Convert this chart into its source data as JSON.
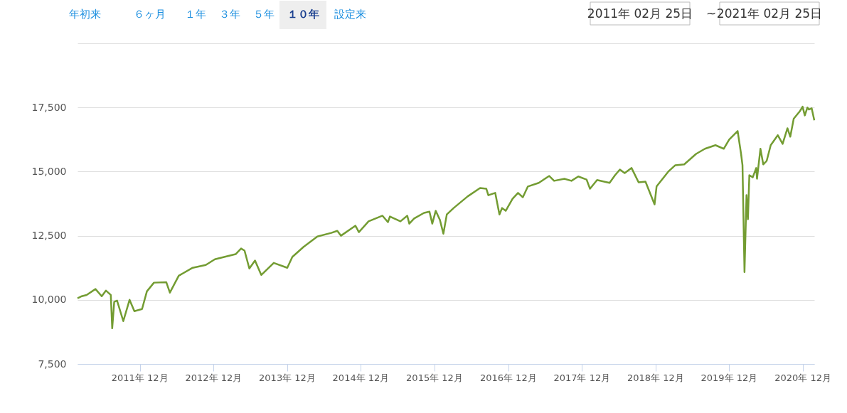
{
  "chart_data": {
    "type": "line",
    "annotations": [
      "年初来",
      "６ヶ月",
      "１年",
      "３年",
      "５年",
      "１０年",
      "設定来",
      "2011年 02月 25日",
      "~",
      "2021年 02月 25日"
    ],
    "x": [
      "2011-02-25",
      "2011-03-18",
      "2011-04-11",
      "2011-05-25",
      "2011-06-25",
      "2011-07-16",
      "2011-08-09",
      "2011-08-16",
      "2011-08-26",
      "2011-09-09",
      "2011-10-10",
      "2011-11-10",
      "2011-12-04",
      "2012-01-11",
      "2012-02-04",
      "2012-03-10",
      "2012-05-10",
      "2012-05-28",
      "2012-07-11",
      "2012-09-18",
      "2012-11-22",
      "2013-01-06",
      "2013-04-19",
      "2013-05-16",
      "2013-06-02",
      "2013-06-26",
      "2013-07-24",
      "2013-08-24",
      "2013-10-25",
      "2013-12-31",
      "2014-01-25",
      "2014-03-21",
      "2014-05-29",
      "2014-08-06",
      "2014-09-05",
      "2014-09-23",
      "2014-12-04",
      "2014-12-21",
      "2015-02-07",
      "2015-04-17",
      "2015-05-14",
      "2015-05-24",
      "2015-07-15",
      "2015-08-18",
      "2015-08-28",
      "2015-09-21",
      "2015-11-09",
      "2015-12-06",
      "2015-12-20",
      "2016-01-06",
      "2016-01-27",
      "2016-02-13",
      "2016-03-01",
      "2016-04-04",
      "2016-06-12",
      "2016-08-13",
      "2016-09-13",
      "2016-09-23",
      "2016-10-27",
      "2016-11-17",
      "2016-11-30",
      "2016-12-18",
      "2017-01-21",
      "2017-02-17",
      "2017-03-13",
      "2017-04-07",
      "2017-05-31",
      "2017-07-22",
      "2017-08-15",
      "2017-10-05",
      "2017-11-09",
      "2017-12-13",
      "2018-01-23",
      "2018-02-09",
      "2018-03-16",
      "2018-05-17",
      "2018-06-13",
      "2018-07-07",
      "2018-07-31",
      "2018-09-03",
      "2018-10-08",
      "2018-11-11",
      "2018-12-26",
      "2019-01-05",
      "2019-03-04",
      "2019-04-08",
      "2019-05-22",
      "2019-07-20",
      "2019-09-02",
      "2019-10-24",
      "2019-12-04",
      "2019-12-31",
      "2020-02-11",
      "2020-02-28",
      "2020-03-06",
      "2020-03-16",
      "2020-03-26",
      "2020-04-02",
      "2020-04-09",
      "2020-04-26",
      "2020-05-13",
      "2020-05-17",
      "2020-06-03",
      "2020-06-17",
      "2020-07-04",
      "2020-07-24",
      "2020-08-28",
      "2020-09-21",
      "2020-10-15",
      "2020-10-29",
      "2020-11-15",
      "2020-12-16",
      "2020-12-29",
      "2021-01-09",
      "2021-01-22",
      "2021-01-29",
      "2021-02-12",
      "2021-02-25"
    ],
    "series": [
      {
        "color": "#739c32",
        "values": [
          10060,
          10140,
          10190,
          10420,
          10140,
          10360,
          10190,
          8890,
          9920,
          9970,
          9170,
          10000,
          9560,
          9640,
          10330,
          10670,
          10690,
          10280,
          10940,
          11250,
          11360,
          11580,
          11780,
          12000,
          11920,
          11220,
          11530,
          10970,
          11440,
          11250,
          11670,
          12060,
          12470,
          12610,
          12690,
          12500,
          12890,
          12640,
          13060,
          13280,
          13030,
          13250,
          13060,
          13280,
          12970,
          13170,
          13390,
          13440,
          12970,
          13470,
          13110,
          12580,
          13330,
          13580,
          14030,
          14360,
          14330,
          14080,
          14170,
          13330,
          13580,
          13470,
          13940,
          14170,
          14000,
          14420,
          14560,
          14830,
          14640,
          14720,
          14640,
          14810,
          14690,
          14330,
          14670,
          14560,
          14860,
          15080,
          14940,
          15140,
          14580,
          14610,
          13720,
          14420,
          15000,
          15250,
          15280,
          15690,
          15890,
          16030,
          15890,
          16250,
          16580,
          15690,
          15250,
          11080,
          14080,
          13140,
          14860,
          14780,
          15140,
          14720,
          15890,
          15280,
          15420,
          16030,
          16420,
          16080,
          16690,
          16360,
          17060,
          17360,
          17530,
          17190,
          17500,
          17420,
          17470,
          17000
        ]
      }
    ],
    "xlim": [
      "2011-02-25",
      "2021-02-25"
    ],
    "xticks": [
      {
        "value": "2011-12-31",
        "label": "2011年 12月"
      },
      {
        "value": "2012-12-31",
        "label": "2012年 12月"
      },
      {
        "value": "2013-12-31",
        "label": "2013年 12月"
      },
      {
        "value": "2014-12-31",
        "label": "2014年 12月"
      },
      {
        "value": "2015-12-31",
        "label": "2015年 12月"
      },
      {
        "value": "2016-12-31",
        "label": "2016年 12月"
      },
      {
        "value": "2017-12-31",
        "label": "2017年 12月"
      },
      {
        "value": "2018-12-31",
        "label": "2018年 12月"
      },
      {
        "value": "2019-12-31",
        "label": "2019年 12月"
      },
      {
        "value": "2020-12-31",
        "label": "2020年 12月"
      }
    ],
    "ylim": [
      7500,
      20000
    ],
    "yticks": [
      {
        "value": 7500,
        "label": "7,500"
      },
      {
        "value": 10000,
        "label": "10,000"
      },
      {
        "value": 12500,
        "label": "12,500"
      },
      {
        "value": 15000,
        "label": "15,000"
      },
      {
        "value": 17500,
        "label": "17,500"
      },
      {
        "value": 20000,
        "label": null
      }
    ],
    "grid": "y",
    "marker": "none",
    "line_style": "solid"
  }
}
